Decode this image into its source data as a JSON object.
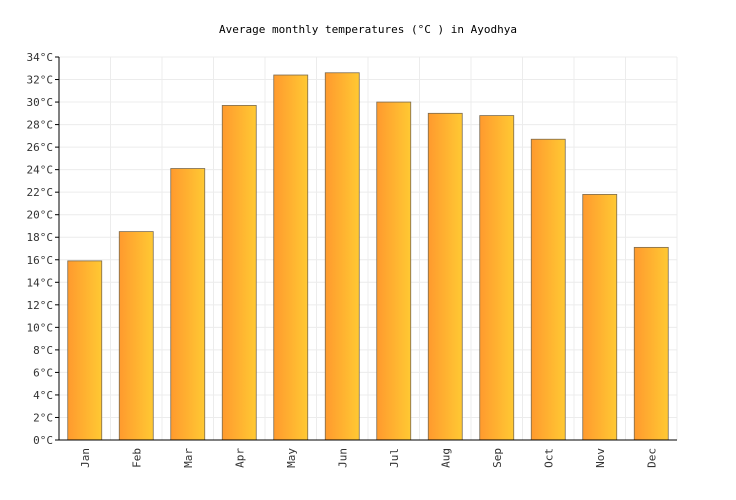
{
  "chart_data": {
    "type": "bar",
    "title": "Average monthly temperatures (°C ) in Ayodhya",
    "xlabel": "",
    "ylabel": "",
    "categories": [
      "Jan",
      "Feb",
      "Mar",
      "Apr",
      "May",
      "Jun",
      "Jul",
      "Aug",
      "Sep",
      "Oct",
      "Nov",
      "Dec"
    ],
    "values": [
      15.9,
      18.5,
      24.1,
      29.7,
      32.4,
      32.6,
      30.0,
      29.0,
      28.8,
      26.7,
      21.8,
      17.1
    ],
    "ylim": [
      0,
      34
    ],
    "ytick_step": 2,
    "ytick_suffix": "°C",
    "grid": true,
    "bar_color_left": "#ff9a2e",
    "bar_color_right": "#ffc933"
  }
}
